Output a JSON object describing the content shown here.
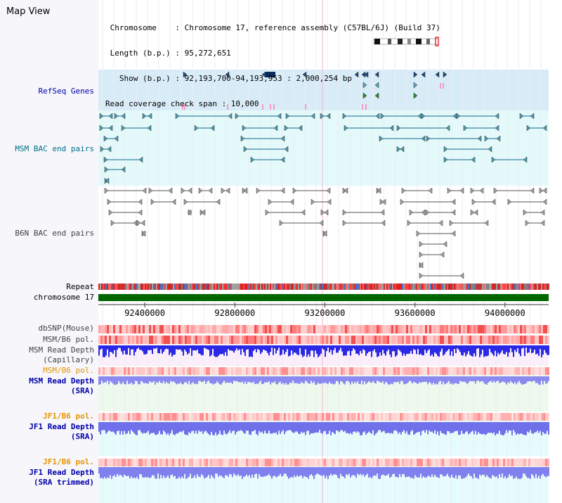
{
  "window": {
    "title": "Map View"
  },
  "header": {
    "lines": [
      " Chromosome    : Chromosome 17, reference assembly (C57BL/6J) (Build 37)",
      " Length (b.p.) : 95,272,651",
      "   Show (b.p.) : 92,193,700-94,193,953 : 2,000,254 bp",
      "Read coverage check span : 10,000"
    ]
  },
  "tracks": {
    "refseq": "RefSeq Genes",
    "msm_bac": "MSM BAC end pairs",
    "b6n_bac": "B6N BAC end pairs",
    "repeat": "Repeat",
    "chromosome": "chromosome 17",
    "dbsnp": "dbSNP(Mouse)",
    "msm_b6_pol_1": "MSM/B6 pol.",
    "msm_depth_cap_1": "MSM Read Depth",
    "msm_depth_cap_2": "(Capillary)",
    "msm_b6_pol_2": "MSM/B6 pol.",
    "msm_depth_sra_1": "MSM Read Depth",
    "msm_depth_sra_2": "(SRA)",
    "jf1_b6_pol_1": "JF1/B6 pol.",
    "jf1_depth_sra_1": "JF1 Read Depth",
    "jf1_depth_sra_2": "(SRA)",
    "jf1_b6_pol_2": "JF1/B6 pol.",
    "jf1_depth_trim_1": "JF1 Read Depth",
    "jf1_depth_trim_2": "(SRA trimmed)"
  },
  "axis": {
    "view_start": 92193700,
    "view_end": 94193953,
    "ticks": [
      "92400000",
      "92800000",
      "93200000",
      "93600000",
      "94000000"
    ]
  },
  "colors": {
    "refseq_bg": "#d8ecf8",
    "msm_bac_bg": "#e4fafa",
    "depth_bg": "#e6fbfb",
    "capillary_bg": "#fbeefb",
    "orange_label": "#e69500",
    "blue_label": "#0000aa",
    "teal_label": "#006e88",
    "chromosome_bar": "#006600"
  }
}
